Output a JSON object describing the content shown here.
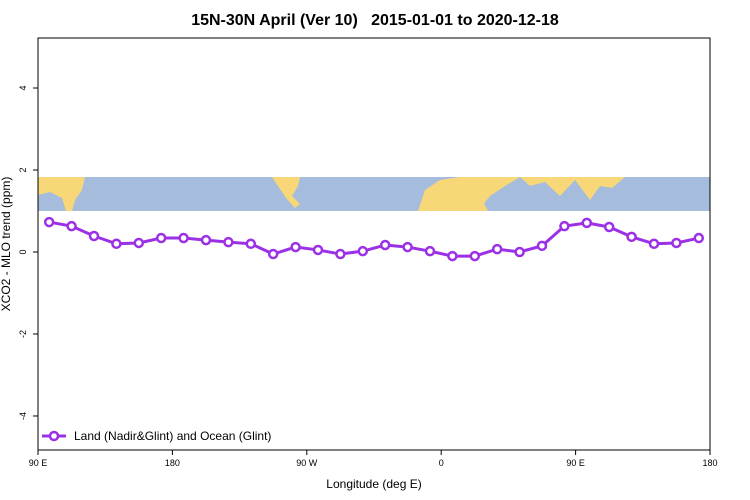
{
  "chart_data": {
    "type": "line",
    "title": "15N-30N April (Ver 10)   2015-01-01 to 2020-12-18",
    "xlabel": "Longitude (deg E)",
    "ylabel": "XCO2 - MLO trend (ppm)",
    "x": [
      97.5,
      112.5,
      127.5,
      142.5,
      157.5,
      172.5,
      187.5,
      202.5,
      217.5,
      232.5,
      247.5,
      262.5,
      277.5,
      292.5,
      307.5,
      322.5,
      337.5,
      352.5,
      367.5,
      382.5,
      397.5,
      412.5,
      427.5,
      442.5,
      457.5,
      472.5,
      487.5,
      502.5,
      517.5,
      532.5
    ],
    "series": [
      {
        "name": "Land (Nadir&Glint) and Ocean (Glint)",
        "color": "#9b30e6",
        "values": [
          0.73,
          0.63,
          0.39,
          0.2,
          0.22,
          0.34,
          0.34,
          0.29,
          0.24,
          0.2,
          -0.05,
          0.12,
          0.05,
          -0.05,
          0.02,
          0.17,
          0.12,
          0.02,
          -0.1,
          -0.1,
          0.07,
          0,
          0.15,
          0.63,
          0.71,
          0.61,
          0.37,
          0.2,
          0.22,
          0.34
        ]
      }
    ],
    "xlim": [
      90,
      540
    ],
    "xticks": [
      {
        "value": 90,
        "label": "90 E"
      },
      180,
      {
        "value": 270,
        "label": "90 W"
      },
      {
        "value": 360,
        "label": "0"
      },
      {
        "value": 450,
        "label": "90 E"
      },
      {
        "value": 540,
        "label": "180"
      }
    ],
    "ylim": [
      -4.83,
      5.22
    ],
    "yticks": [
      -4,
      -2,
      0,
      2,
      4
    ],
    "legend": "bottom-left"
  }
}
